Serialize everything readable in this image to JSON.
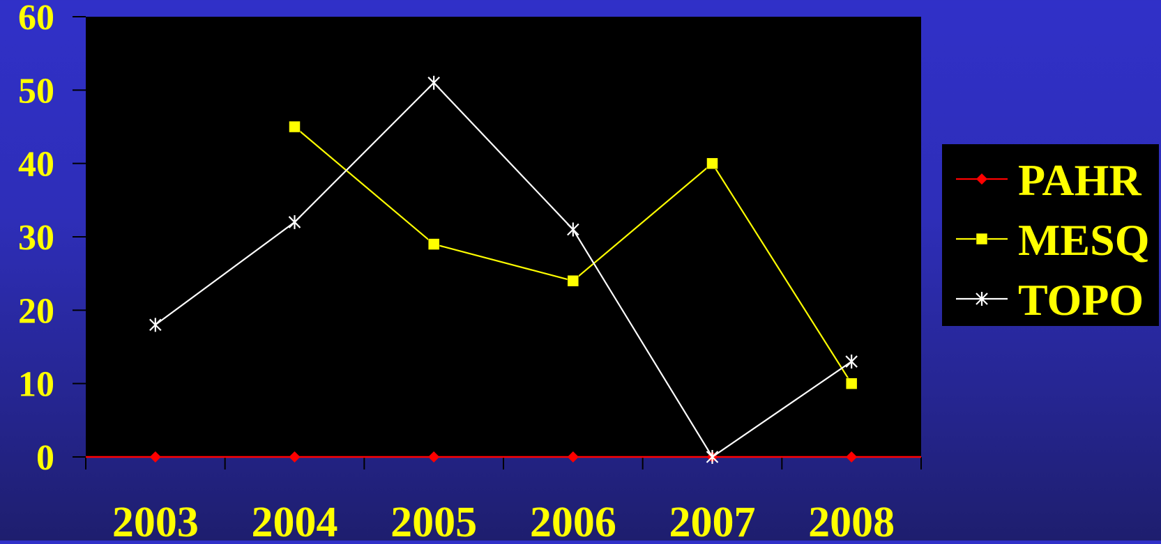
{
  "chart_data": {
    "type": "line",
    "categories": [
      "2003",
      "2004",
      "2005",
      "2006",
      "2007",
      "2008"
    ],
    "ylim": [
      0,
      60
    ],
    "y_ticks": [
      "0",
      "10",
      "20",
      "30",
      "40",
      "50",
      "60"
    ],
    "grid": false,
    "legend_position": "right",
    "series": [
      {
        "name": "PAHR",
        "values": [
          0,
          0,
          0,
          0,
          0,
          0
        ],
        "color": "#ff0000",
        "marker": "diamond"
      },
      {
        "name": "MESQ",
        "values": [
          null,
          45,
          29,
          24,
          40,
          10
        ],
        "color": "#ffff00",
        "marker": "square"
      },
      {
        "name": "TOPO",
        "values": [
          18,
          32,
          51,
          31,
          0,
          13
        ],
        "color": "#ffffff",
        "marker": "asterisk"
      }
    ],
    "colors": {
      "plot_background": "#000000",
      "tick_label_color": "#ffff00",
      "axis_color": "#000000"
    }
  }
}
